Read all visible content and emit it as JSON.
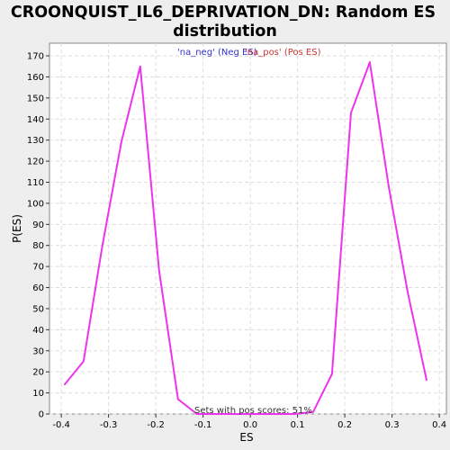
{
  "chart_data": {
    "type": "line",
    "title_line1": "CROONQUIST_IL6_DEPRIVATION_DN: Random ES",
    "title_line2": "distribution",
    "xlabel": "ES",
    "ylabel": "P(ES)",
    "xlim": [
      -0.425,
      0.415
    ],
    "ylim": [
      0,
      176
    ],
    "x_ticks": [
      -0.4,
      -0.3,
      -0.2,
      -0.1,
      0.0,
      0.1,
      0.2,
      0.3,
      0.4
    ],
    "x_tick_labels": [
      "-0.4",
      "-0.3",
      "-0.2",
      "-0.1",
      "0.0",
      "0.1",
      "0.2",
      "0.3",
      "0.4"
    ],
    "y_ticks": [
      0,
      10,
      20,
      30,
      40,
      50,
      60,
      70,
      80,
      90,
      100,
      110,
      120,
      130,
      140,
      150,
      160,
      170
    ],
    "y_tick_labels": [
      "0",
      "10",
      "20",
      "30",
      "40",
      "50",
      "60",
      "70",
      "80",
      "90",
      "100",
      "110",
      "120",
      "130",
      "140",
      "150",
      "160",
      "170"
    ],
    "grid": true,
    "legend": [
      {
        "label": "'na_neg' (Neg ES)",
        "color": "#3333cc"
      },
      {
        "label": "'na_pos' (Pos ES)",
        "color": "#cc3333"
      }
    ],
    "annotation": "Sets with pos scores: 51%",
    "series": [
      {
        "color": "#ee33ee",
        "x": [
          -0.393,
          -0.353,
          -0.313,
          -0.273,
          -0.233,
          -0.193,
          -0.153,
          -0.113,
          -0.073,
          -0.033,
          0.007,
          0.047,
          0.093,
          0.133,
          0.173,
          0.213,
          0.253,
          0.293,
          0.333,
          0.373
        ],
        "y": [
          14,
          25,
          80,
          129,
          165,
          68,
          7,
          0,
          0,
          0,
          0,
          0,
          0,
          1,
          19,
          143,
          167,
          108,
          58,
          16
        ]
      }
    ]
  }
}
